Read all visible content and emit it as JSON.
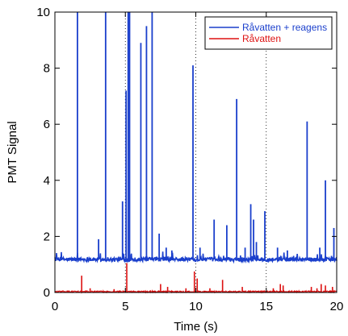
{
  "chart_data": {
    "type": "line",
    "xlabel": "Time (s)",
    "ylabel": "PMT Signal",
    "xlim": [
      0,
      20
    ],
    "ylim": [
      0,
      10
    ],
    "xticks": [
      0,
      5,
      10,
      15,
      20
    ],
    "yticks": [
      0,
      2,
      4,
      6,
      8,
      10
    ],
    "grid": "dotted at x=5,10,15",
    "legend_position": "top-right",
    "series": [
      {
        "name": "Råvatten + reagens",
        "color": "#1a3fcc",
        "baseline": 1.18,
        "spikes": [
          {
            "x": 1.6,
            "y": 10.0
          },
          {
            "x": 3.1,
            "y": 1.9
          },
          {
            "x": 3.6,
            "y": 10.0
          },
          {
            "x": 4.8,
            "y": 3.25
          },
          {
            "x": 5.05,
            "y": 7.2
          },
          {
            "x": 5.2,
            "y": 10.0
          },
          {
            "x": 5.3,
            "y": 10.0
          },
          {
            "x": 6.1,
            "y": 8.9
          },
          {
            "x": 6.5,
            "y": 9.5
          },
          {
            "x": 6.9,
            "y": 10.0
          },
          {
            "x": 7.4,
            "y": 2.1
          },
          {
            "x": 7.9,
            "y": 1.6
          },
          {
            "x": 8.3,
            "y": 1.5
          },
          {
            "x": 9.8,
            "y": 8.1
          },
          {
            "x": 10.3,
            "y": 1.6
          },
          {
            "x": 11.3,
            "y": 2.6
          },
          {
            "x": 12.2,
            "y": 2.4
          },
          {
            "x": 12.9,
            "y": 6.9
          },
          {
            "x": 13.5,
            "y": 1.6
          },
          {
            "x": 13.9,
            "y": 3.15
          },
          {
            "x": 14.1,
            "y": 2.6
          },
          {
            "x": 14.3,
            "y": 1.8
          },
          {
            "x": 14.9,
            "y": 2.9
          },
          {
            "x": 15.8,
            "y": 1.6
          },
          {
            "x": 16.5,
            "y": 1.5
          },
          {
            "x": 17.9,
            "y": 6.1
          },
          {
            "x": 18.8,
            "y": 1.6
          },
          {
            "x": 19.2,
            "y": 4.0
          },
          {
            "x": 19.8,
            "y": 2.3
          }
        ]
      },
      {
        "name": "Råvatten",
        "color": "#dd1111",
        "baseline": 0.03,
        "spikes": [
          {
            "x": 1.9,
            "y": 0.6
          },
          {
            "x": 2.5,
            "y": 0.15
          },
          {
            "x": 4.2,
            "y": 0.12
          },
          {
            "x": 5.1,
            "y": 1.05
          },
          {
            "x": 7.5,
            "y": 0.3
          },
          {
            "x": 8.0,
            "y": 0.2
          },
          {
            "x": 9.3,
            "y": 0.15
          },
          {
            "x": 9.9,
            "y": 0.75
          },
          {
            "x": 10.1,
            "y": 0.5
          },
          {
            "x": 11.0,
            "y": 0.15
          },
          {
            "x": 11.9,
            "y": 0.45
          },
          {
            "x": 13.3,
            "y": 0.2
          },
          {
            "x": 15.5,
            "y": 0.15
          },
          {
            "x": 16.0,
            "y": 0.3
          },
          {
            "x": 16.2,
            "y": 0.25
          },
          {
            "x": 18.2,
            "y": 0.2
          },
          {
            "x": 18.6,
            "y": 0.15
          },
          {
            "x": 18.9,
            "y": 0.3
          },
          {
            "x": 19.2,
            "y": 0.25
          },
          {
            "x": 19.7,
            "y": 0.2
          }
        ]
      }
    ]
  }
}
